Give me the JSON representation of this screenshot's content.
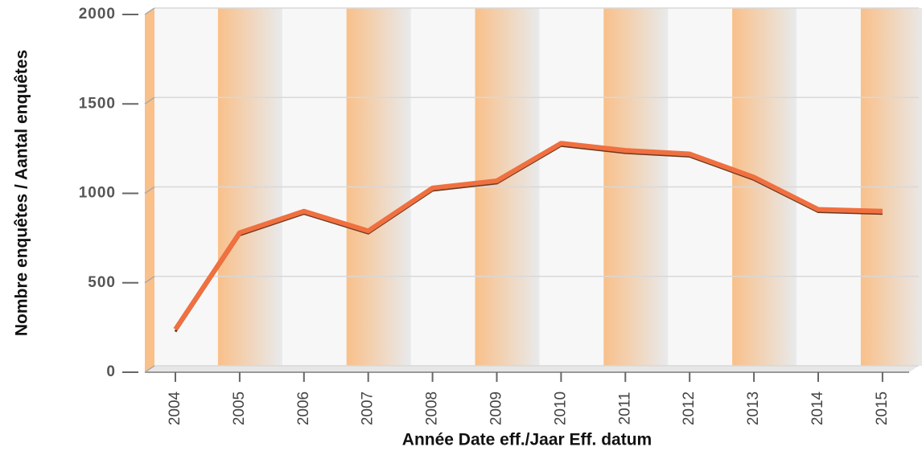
{
  "chart_data": {
    "type": "line",
    "x_label": "Année Date eff./Jaar Eff. datum",
    "y_label": "Nombre enquêtes / Aantal enquêtes",
    "categories": [
      "2004",
      "2005",
      "2006",
      "2007",
      "2008",
      "2009",
      "2010",
      "2011",
      "2012",
      "2013",
      "2014",
      "2015"
    ],
    "series": [
      {
        "color": "#f07040",
        "values": [
          240,
          780,
          900,
          790,
          1030,
          1070,
          1280,
          1240,
          1220,
          1090,
          910,
          900
        ]
      }
    ],
    "ylim": [
      0,
      2000
    ],
    "yticks": [
      0,
      500,
      1000,
      1500,
      2000
    ],
    "grid": true
  }
}
